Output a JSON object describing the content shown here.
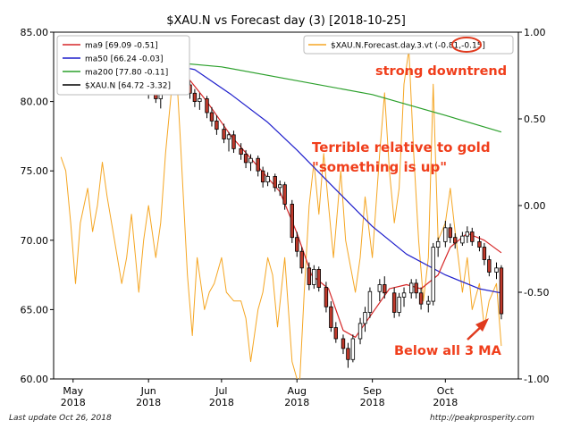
{
  "chart_data": {
    "type": "candlestick",
    "title": "$XAU.N vs Forecast day (3)  [2018-10-25]",
    "y_left": {
      "min": 60,
      "max": 85,
      "ticks": [
        "60.00",
        "65.00",
        "70.00",
        "75.00",
        "80.00",
        "85.00"
      ]
    },
    "y_right": {
      "min": -1.0,
      "max": 1.0,
      "ticks": [
        "-1.00",
        "-0.50",
        "0.00",
        "0.50",
        "1.00"
      ]
    },
    "x_axis": {
      "start": "2018-04-23",
      "end": "2018-10-31",
      "ticks": [
        {
          "date": "2018-05-01",
          "line1": "May",
          "line2": "2018"
        },
        {
          "date": "2018-06-01",
          "line1": "Jun",
          "line2": "2018"
        },
        {
          "date": "2018-07-01",
          "line1": "Jul",
          "line2": "2018"
        },
        {
          "date": "2018-08-01",
          "line1": "Aug",
          "line2": "2018"
        },
        {
          "date": "2018-09-01",
          "line1": "Sep",
          "line2": "2018"
        },
        {
          "date": "2018-10-01",
          "line1": "Oct",
          "line2": "2018"
        }
      ]
    },
    "legend_left": [
      {
        "label": "ma9 [69.09 -0.51]",
        "color": "#d62728"
      },
      {
        "label": "ma50 [66.24 -0.03]",
        "color": "#1f1fcc"
      },
      {
        "label": "ma200 [77.80 -0.11]",
        "color": "#2ca02c"
      },
      {
        "label": "$XAU.N [64.72 -3.32]",
        "color": "#000000"
      }
    ],
    "legend_right": {
      "prefix": "$XAU.N.Forecast.day.3.vt (",
      "highlight": "-0.81",
      "suffix": ",-0.15]",
      "color": "#f5a623"
    },
    "forecast": {
      "axis": "right",
      "color": "#f5a623",
      "points": [
        [
          "2018-04-26",
          0.28
        ],
        [
          "2018-04-28",
          0.2
        ],
        [
          "2018-04-30",
          -0.1
        ],
        [
          "2018-05-02",
          -0.45
        ],
        [
          "2018-05-04",
          -0.1
        ],
        [
          "2018-05-07",
          0.1
        ],
        [
          "2018-05-09",
          -0.15
        ],
        [
          "2018-05-11",
          0.0
        ],
        [
          "2018-05-13",
          0.25
        ],
        [
          "2018-05-15",
          0.05
        ],
        [
          "2018-05-18",
          -0.2
        ],
        [
          "2018-05-21",
          -0.45
        ],
        [
          "2018-05-23",
          -0.3
        ],
        [
          "2018-05-25",
          -0.05
        ],
        [
          "2018-05-28",
          -0.5
        ],
        [
          "2018-05-30",
          -0.2
        ],
        [
          "2018-06-01",
          0.0
        ],
        [
          "2018-06-04",
          -0.3
        ],
        [
          "2018-06-06",
          -0.1
        ],
        [
          "2018-06-08",
          0.3
        ],
        [
          "2018-06-10",
          0.6
        ],
        [
          "2018-06-12",
          0.9
        ],
        [
          "2018-06-14",
          0.4
        ],
        [
          "2018-06-17",
          -0.4
        ],
        [
          "2018-06-19",
          -0.75
        ],
        [
          "2018-06-21",
          -0.3
        ],
        [
          "2018-06-24",
          -0.6
        ],
        [
          "2018-06-26",
          -0.5
        ],
        [
          "2018-06-28",
          -0.45
        ],
        [
          "2018-07-01",
          -0.3
        ],
        [
          "2018-07-03",
          -0.5
        ],
        [
          "2018-07-06",
          -0.55
        ],
        [
          "2018-07-09",
          -0.55
        ],
        [
          "2018-07-11",
          -0.65
        ],
        [
          "2018-07-13",
          -0.9
        ],
        [
          "2018-07-16",
          -0.6
        ],
        [
          "2018-07-18",
          -0.5
        ],
        [
          "2018-07-20",
          -0.3
        ],
        [
          "2018-07-22",
          -0.4
        ],
        [
          "2018-07-24",
          -0.7
        ],
        [
          "2018-07-27",
          -0.3
        ],
        [
          "2018-07-30",
          -0.9
        ],
        [
          "2018-08-02",
          -1.05
        ],
        [
          "2018-08-04",
          -0.5
        ],
        [
          "2018-08-06",
          0.0
        ],
        [
          "2018-08-08",
          0.25
        ],
        [
          "2018-08-10",
          -0.05
        ],
        [
          "2018-08-12",
          0.3
        ],
        [
          "2018-08-14",
          0.0
        ],
        [
          "2018-08-16",
          -0.3
        ],
        [
          "2018-08-19",
          0.2
        ],
        [
          "2018-08-21",
          -0.2
        ],
        [
          "2018-08-23",
          -0.35
        ],
        [
          "2018-08-25",
          -0.5
        ],
        [
          "2018-08-27",
          -0.3
        ],
        [
          "2018-08-29",
          0.05
        ],
        [
          "2018-09-01",
          -0.3
        ],
        [
          "2018-09-04",
          0.3
        ],
        [
          "2018-09-06",
          0.65
        ],
        [
          "2018-09-08",
          0.2
        ],
        [
          "2018-09-10",
          -0.1
        ],
        [
          "2018-09-12",
          0.1
        ],
        [
          "2018-09-14",
          0.7
        ],
        [
          "2018-09-16",
          0.9
        ],
        [
          "2018-09-18",
          0.3
        ],
        [
          "2018-09-20",
          -0.2
        ],
        [
          "2018-09-22",
          -0.55
        ],
        [
          "2018-09-24",
          -0.3
        ],
        [
          "2018-09-26",
          0.7
        ],
        [
          "2018-09-28",
          -0.2
        ],
        [
          "2018-10-01",
          -0.1
        ],
        [
          "2018-10-03",
          0.1
        ],
        [
          "2018-10-05",
          -0.15
        ],
        [
          "2018-10-08",
          -0.5
        ],
        [
          "2018-10-10",
          -0.3
        ],
        [
          "2018-10-12",
          -0.6
        ],
        [
          "2018-10-15",
          -0.45
        ],
        [
          "2018-10-17",
          -0.7
        ],
        [
          "2018-10-19",
          -0.55
        ],
        [
          "2018-10-22",
          -0.45
        ],
        [
          "2018-10-24",
          -0.81
        ]
      ]
    },
    "ma200": {
      "color": "#2ca02c",
      "points": [
        [
          "2018-06-06",
          82.9
        ],
        [
          "2018-07-01",
          82.5
        ],
        [
          "2018-08-01",
          81.5
        ],
        [
          "2018-09-01",
          80.5
        ],
        [
          "2018-10-01",
          79.0
        ],
        [
          "2018-10-24",
          77.8
        ]
      ]
    },
    "ma50": {
      "color": "#1f1fcc",
      "points": [
        [
          "2018-06-06",
          82.8
        ],
        [
          "2018-06-20",
          82.3
        ],
        [
          "2018-07-05",
          80.5
        ],
        [
          "2018-07-20",
          78.5
        ],
        [
          "2018-08-01",
          76.5
        ],
        [
          "2018-08-15",
          74.0
        ],
        [
          "2018-09-01",
          71.0
        ],
        [
          "2018-09-15",
          69.0
        ],
        [
          "2018-10-01",
          67.5
        ],
        [
          "2018-10-15",
          66.5
        ],
        [
          "2018-10-24",
          66.2
        ]
      ]
    },
    "ma9": {
      "color": "#d62728",
      "points": [
        [
          "2018-06-06",
          81.5
        ],
        [
          "2018-06-12",
          82.5
        ],
        [
          "2018-06-15",
          82.2
        ],
        [
          "2018-06-25",
          80.0
        ],
        [
          "2018-07-05",
          77.5
        ],
        [
          "2018-07-15",
          75.5
        ],
        [
          "2018-07-25",
          73.5
        ],
        [
          "2018-08-01",
          70.5
        ],
        [
          "2018-08-07",
          67.5
        ],
        [
          "2018-08-14",
          66.5
        ],
        [
          "2018-08-20",
          63.5
        ],
        [
          "2018-08-25",
          63.0
        ],
        [
          "2018-08-31",
          64.5
        ],
        [
          "2018-09-08",
          66.5
        ],
        [
          "2018-09-15",
          66.8
        ],
        [
          "2018-09-21",
          66.5
        ],
        [
          "2018-09-28",
          67.5
        ],
        [
          "2018-10-03",
          69.5
        ],
        [
          "2018-10-10",
          70.5
        ],
        [
          "2018-10-17",
          70.0
        ],
        [
          "2018-10-24",
          69.1
        ]
      ]
    },
    "candles": [
      [
        "2018-06-01",
        80.8,
        81.2,
        80.2,
        80.6
      ],
      [
        "2018-06-04",
        80.6,
        81.0,
        79.9,
        80.2
      ],
      [
        "2018-06-06",
        80.2,
        81.6,
        79.5,
        81.3
      ],
      [
        "2018-06-08",
        81.3,
        82.0,
        80.8,
        81.8
      ],
      [
        "2018-06-11",
        81.8,
        82.8,
        81.2,
        82.5
      ],
      [
        "2018-06-13",
        82.5,
        82.9,
        81.5,
        81.8
      ],
      [
        "2018-06-15",
        81.8,
        82.1,
        80.8,
        81.2
      ],
      [
        "2018-06-18",
        81.2,
        81.5,
        80.2,
        80.6
      ],
      [
        "2018-06-20",
        80.6,
        80.9,
        79.6,
        80.0
      ],
      [
        "2018-06-22",
        80.0,
        80.6,
        79.4,
        80.2
      ],
      [
        "2018-06-25",
        80.2,
        80.4,
        78.8,
        79.2
      ],
      [
        "2018-06-27",
        79.2,
        79.6,
        78.2,
        78.6
      ],
      [
        "2018-06-29",
        78.6,
        79.0,
        77.6,
        78.0
      ],
      [
        "2018-07-02",
        78.0,
        78.4,
        77.0,
        77.3
      ],
      [
        "2018-07-04",
        77.3,
        77.8,
        76.4,
        77.6
      ],
      [
        "2018-07-06",
        77.6,
        77.9,
        76.3,
        76.6
      ],
      [
        "2018-07-09",
        76.6,
        77.0,
        75.8,
        76.2
      ],
      [
        "2018-07-11",
        76.2,
        76.5,
        75.2,
        75.6
      ],
      [
        "2018-07-13",
        75.6,
        76.2,
        75.0,
        75.9
      ],
      [
        "2018-07-16",
        75.9,
        76.1,
        74.6,
        75.0
      ],
      [
        "2018-07-18",
        75.0,
        75.3,
        73.8,
        74.2
      ],
      [
        "2018-07-20",
        74.2,
        74.9,
        73.9,
        74.6
      ],
      [
        "2018-07-23",
        74.6,
        74.8,
        73.5,
        73.8
      ],
      [
        "2018-07-25",
        73.8,
        74.3,
        73.2,
        74.0
      ],
      [
        "2018-07-27",
        74.0,
        74.2,
        72.2,
        72.6
      ],
      [
        "2018-07-30",
        72.6,
        72.9,
        69.8,
        70.2
      ],
      [
        "2018-08-01",
        70.2,
        70.6,
        68.8,
        69.2
      ],
      [
        "2018-08-03",
        69.2,
        69.5,
        67.6,
        68.0
      ],
      [
        "2018-08-06",
        68.0,
        68.4,
        66.4,
        66.8
      ],
      [
        "2018-08-08",
        66.8,
        68.2,
        66.5,
        67.9
      ],
      [
        "2018-08-10",
        67.9,
        68.1,
        66.3,
        66.6
      ],
      [
        "2018-08-13",
        66.6,
        67.0,
        64.8,
        65.2
      ],
      [
        "2018-08-15",
        65.2,
        65.6,
        63.4,
        63.7
      ],
      [
        "2018-08-17",
        63.7,
        64.1,
        62.6,
        62.9
      ],
      [
        "2018-08-20",
        62.9,
        63.2,
        61.8,
        62.2
      ],
      [
        "2018-08-22",
        62.2,
        62.6,
        60.8,
        61.4
      ],
      [
        "2018-08-24",
        61.4,
        63.2,
        61.2,
        62.9
      ],
      [
        "2018-08-27",
        62.9,
        64.4,
        62.5,
        64.0
      ],
      [
        "2018-08-29",
        64.0,
        65.2,
        63.4,
        64.8
      ],
      [
        "2018-08-31",
        64.8,
        66.6,
        64.4,
        66.3
      ],
      [
        "2018-09-04",
        66.3,
        67.2,
        65.6,
        66.8
      ],
      [
        "2018-09-06",
        66.8,
        67.4,
        65.8,
        66.2
      ],
      [
        "2018-09-10",
        66.2,
        66.6,
        64.4,
        64.8
      ],
      [
        "2018-09-12",
        64.8,
        66.2,
        64.5,
        65.9
      ],
      [
        "2018-09-14",
        65.9,
        66.6,
        65.2,
        66.2
      ],
      [
        "2018-09-17",
        66.2,
        67.2,
        65.8,
        66.9
      ],
      [
        "2018-09-19",
        66.9,
        67.2,
        65.8,
        66.2
      ],
      [
        "2018-09-21",
        66.2,
        66.6,
        65.0,
        65.4
      ],
      [
        "2018-09-24",
        65.4,
        66.0,
        64.8,
        65.6
      ],
      [
        "2018-09-26",
        65.6,
        69.8,
        65.3,
        69.5
      ],
      [
        "2018-09-28",
        69.5,
        70.2,
        68.8,
        69.9
      ],
      [
        "2018-10-01",
        69.9,
        71.4,
        69.5,
        70.9
      ],
      [
        "2018-10-03",
        70.9,
        71.2,
        69.8,
        70.2
      ],
      [
        "2018-10-05",
        70.2,
        70.5,
        69.4,
        69.8
      ],
      [
        "2018-10-08",
        69.8,
        70.6,
        69.6,
        70.3
      ],
      [
        "2018-10-10",
        70.3,
        71.0,
        69.8,
        70.6
      ],
      [
        "2018-10-12",
        70.6,
        70.9,
        69.6,
        69.9
      ],
      [
        "2018-10-15",
        69.9,
        70.3,
        69.2,
        69.5
      ],
      [
        "2018-10-17",
        69.5,
        69.8,
        68.2,
        68.6
      ],
      [
        "2018-10-19",
        68.6,
        68.9,
        67.4,
        67.7
      ],
      [
        "2018-10-22",
        67.7,
        68.4,
        67.2,
        68.0
      ],
      [
        "2018-10-24",
        68.0,
        68.2,
        64.3,
        64.7
      ]
    ],
    "annotations": [
      {
        "text": "strong downtrend",
        "color": "#f03e1b"
      },
      {
        "text": "Terrible relative to gold",
        "color": "#f03e1b"
      },
      {
        "text": "\"something is up\"",
        "color": "#f03e1b"
      },
      {
        "text": "Below all 3 MA",
        "color": "#f03e1b"
      }
    ],
    "grid": false
  },
  "footer": {
    "left": "Last update Oct 26, 2018",
    "right": "http://peakprosperity.com"
  }
}
